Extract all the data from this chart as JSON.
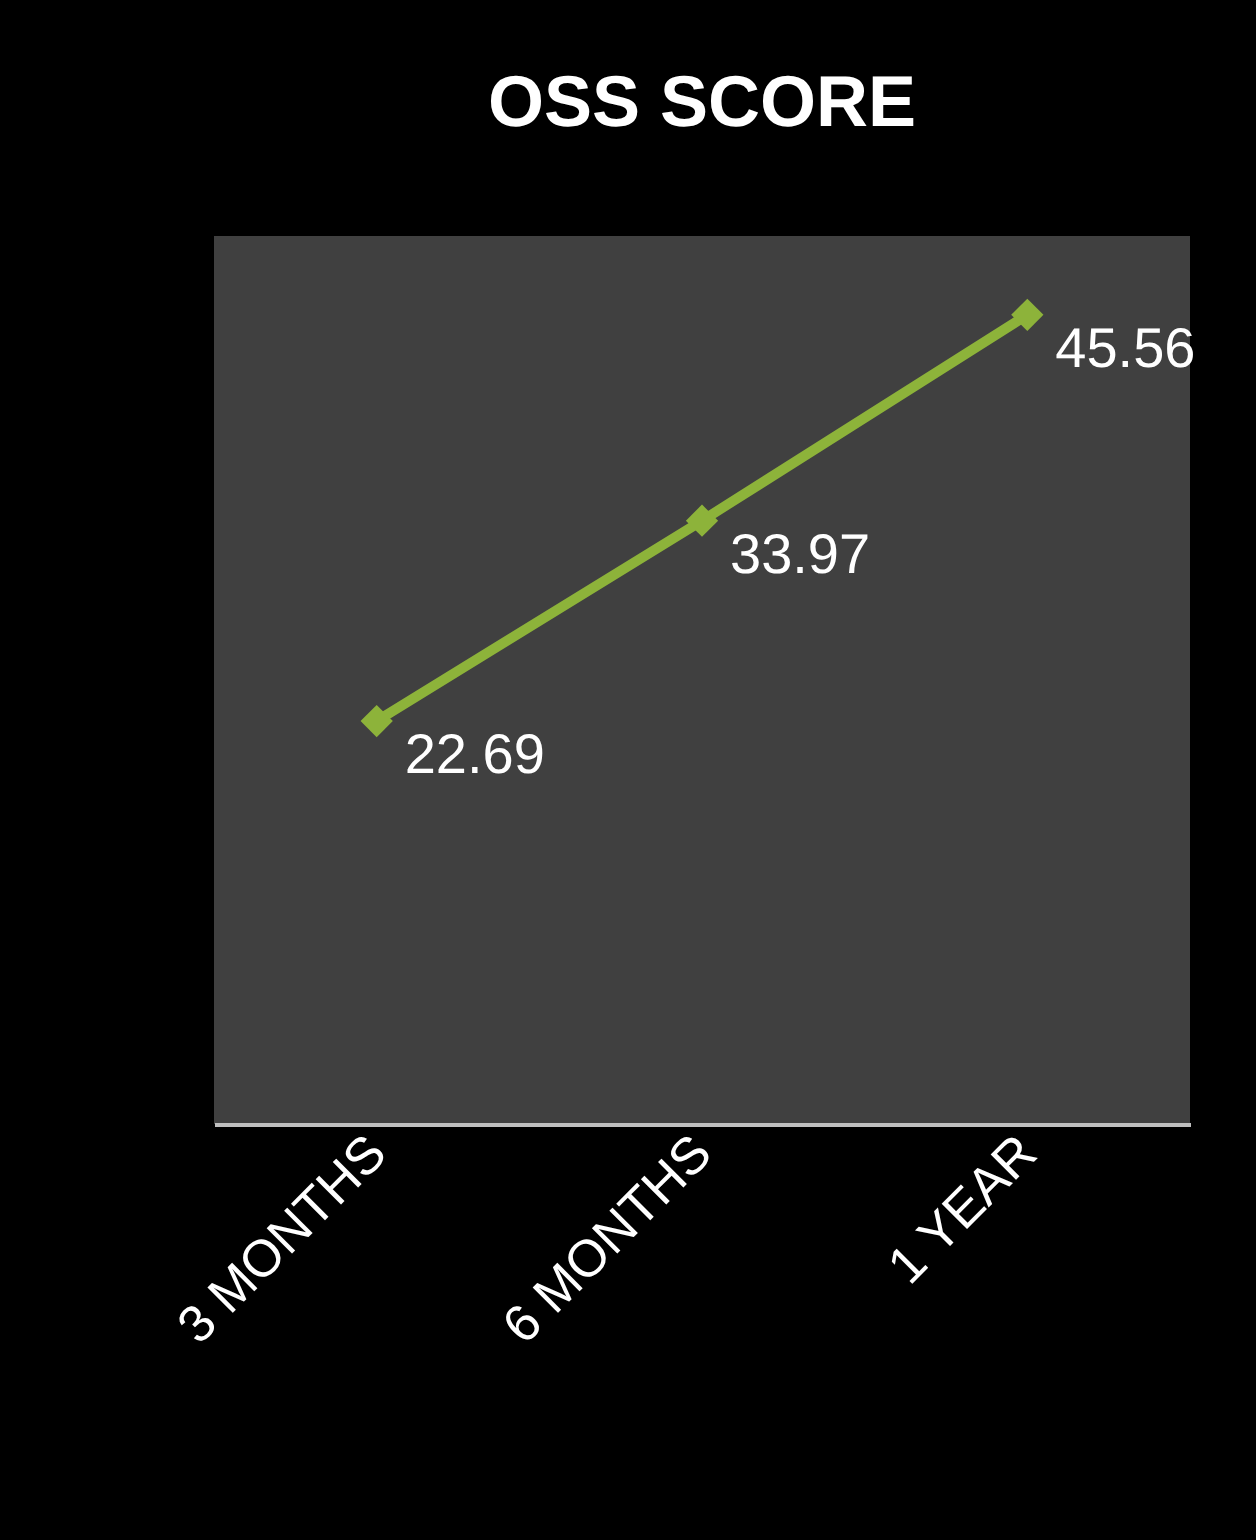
{
  "chart_data": {
    "type": "line",
    "title": "OSS SCORE",
    "categories": [
      "3 MONTHS",
      "6 MONTHS",
      "1 YEAR"
    ],
    "series": [
      {
        "color": "#8db33a",
        "values": [
          22.69,
          33.97,
          45.56
        ]
      }
    ],
    "data_labels": true,
    "marker": "diamond",
    "line_style": "solid",
    "grid": false,
    "legend": false
  }
}
